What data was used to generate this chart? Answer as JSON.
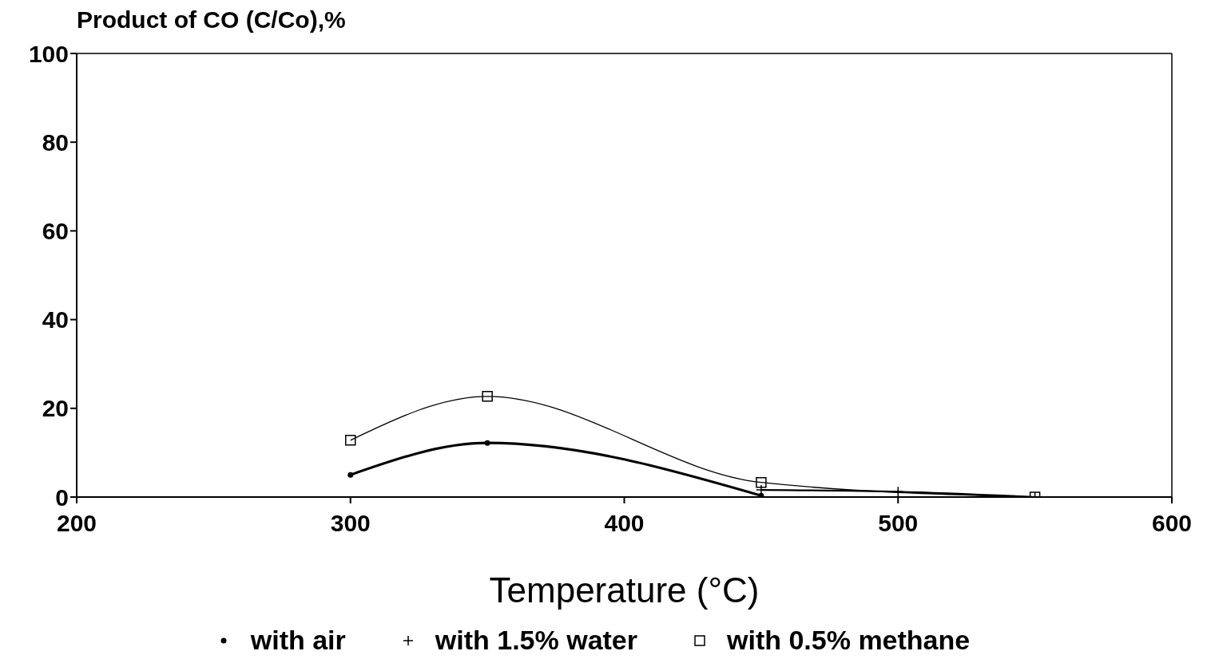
{
  "chart_data": {
    "type": "line",
    "ylabel": "Product   of CO (C/Co),%",
    "xlabel": "Temperature (°C)",
    "xlim": [
      200,
      600
    ],
    "xticks": [
      200,
      300,
      400,
      500,
      600
    ],
    "ylim": [
      0,
      100
    ],
    "yticks": [
      0,
      20,
      40,
      60,
      80,
      100
    ],
    "grid": false,
    "legend": "bottom",
    "line_style": "solid",
    "series": [
      {
        "name": "with air",
        "color": "#000000",
        "marker": "circle",
        "x": [
          300,
          350,
          450
        ],
        "values": [
          5,
          12.2,
          0.3
        ]
      },
      {
        "name": "with 1.5% water",
        "color": "#000000",
        "marker": "cross",
        "x": [
          450,
          500,
          550
        ],
        "values": [
          1.6,
          1.2,
          0
        ]
      },
      {
        "name": "with 0.5% methane",
        "color": "#000000",
        "marker": "square",
        "x": [
          300,
          350,
          450,
          550
        ],
        "values": [
          12.8,
          22.7,
          3.3,
          0
        ]
      }
    ]
  }
}
